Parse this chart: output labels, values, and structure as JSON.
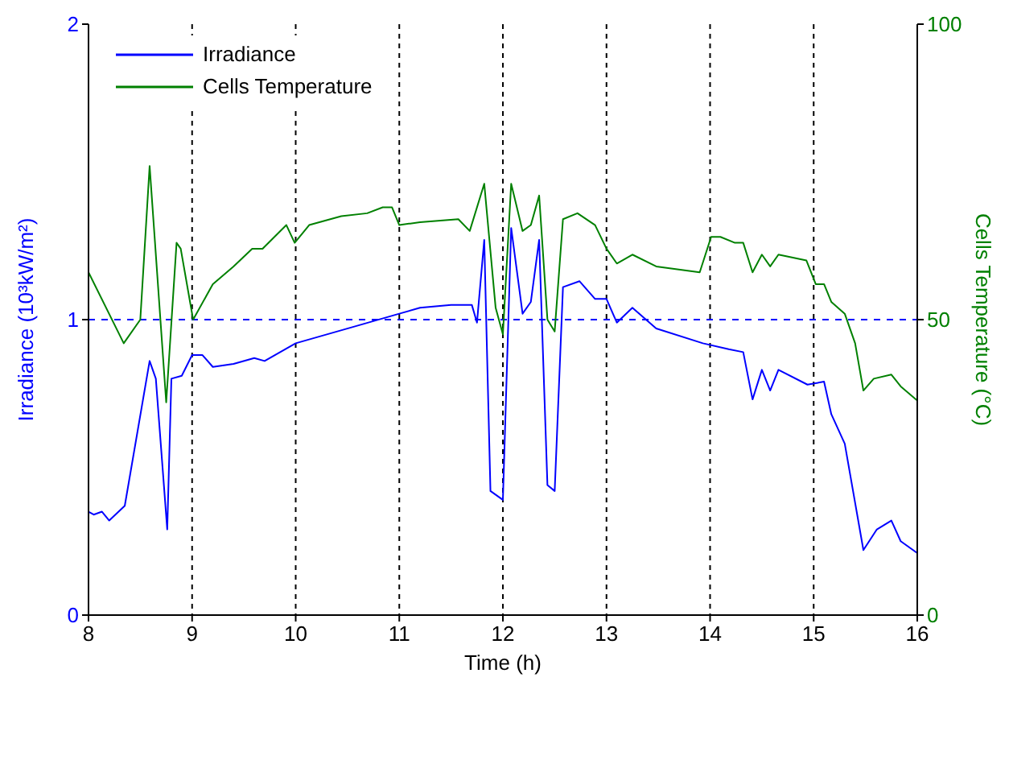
{
  "chart_data": {
    "type": "line",
    "xlabel": "Time (h)",
    "ylabel": "Irradiance (10³kW/m²)",
    "y2label": "Cells Temperature (°C)",
    "xlim": [
      8,
      16
    ],
    "xticks": [
      8,
      9,
      10,
      11,
      12,
      13,
      14,
      15,
      16
    ],
    "ylim": [
      0,
      2
    ],
    "yticks": [
      0,
      1,
      2
    ],
    "y2lim": [
      0,
      100
    ],
    "y2ticks": [
      0,
      50,
      100
    ],
    "grid": "x",
    "legend": "top left",
    "line_style": "solid",
    "ref_lines": [
      {
        "axis": "y",
        "value": 1,
        "color": "#0000ff",
        "line_style": "dashed"
      }
    ],
    "series": [
      {
        "name": "Irradiance",
        "color": "#0000ff",
        "x": [
          8,
          8.05,
          8.13,
          8.2,
          8.35,
          8.59,
          8.65,
          8.76,
          8.8,
          8.9,
          9.0,
          9.1,
          9.2,
          9.4,
          9.6,
          9.7,
          10.0,
          10.3,
          10.6,
          11.0,
          11.2,
          11.5,
          11.7,
          11.75,
          11.82,
          11.88,
          12.0,
          12.08,
          12.19,
          12.27,
          12.35,
          12.43,
          12.5,
          12.58,
          12.74,
          12.89,
          13.0,
          13.1,
          13.25,
          13.48,
          13.93,
          14.18,
          14.32,
          14.41,
          14.5,
          14.58,
          14.66,
          14.94,
          15.1,
          15.17,
          15.3,
          15.48,
          15.61,
          15.75,
          15.84,
          16
        ],
        "values": [
          0.35,
          0.34,
          0.35,
          0.32,
          0.37,
          0.86,
          0.8,
          0.29,
          0.8,
          0.81,
          0.88,
          0.88,
          0.84,
          0.85,
          0.87,
          0.86,
          0.92,
          0.95,
          0.98,
          1.02,
          1.04,
          1.05,
          1.05,
          0.99,
          1.27,
          0.42,
          0.39,
          1.31,
          1.02,
          1.06,
          1.27,
          0.44,
          0.42,
          1.11,
          1.13,
          1.07,
          1.07,
          0.99,
          1.04,
          0.97,
          0.92,
          0.9,
          0.89,
          0.73,
          0.83,
          0.76,
          0.83,
          0.78,
          0.79,
          0.68,
          0.58,
          0.22,
          0.29,
          0.32,
          0.25,
          0.21
        ]
      },
      {
        "name": "Cells Temperature",
        "color": "#008000",
        "axis": "y2",
        "x": [
          8,
          8.34,
          8.5,
          8.59,
          8.75,
          8.85,
          8.89,
          9.01,
          9.2,
          9.4,
          9.58,
          9.68,
          9.91,
          9.99,
          10.13,
          10.44,
          10.69,
          10.84,
          10.93,
          11.0,
          11.2,
          11.57,
          11.68,
          11.82,
          11.93,
          12.0,
          12.08,
          12.19,
          12.27,
          12.35,
          12.43,
          12.5,
          12.58,
          12.72,
          12.89,
          13.0,
          13.1,
          13.25,
          13.48,
          13.9,
          14.01,
          14.1,
          14.24,
          14.32,
          14.41,
          14.5,
          14.58,
          14.66,
          14.93,
          15.02,
          15.1,
          15.17,
          15.3,
          15.4,
          15.48,
          15.58,
          15.75,
          15.84,
          16
        ],
        "values": [
          58,
          46,
          50,
          76,
          36,
          63,
          62,
          50,
          56,
          59,
          62,
          62,
          66,
          63,
          66,
          67.5,
          68,
          69,
          69,
          66,
          66.5,
          67,
          65,
          73,
          52,
          47.5,
          73,
          65,
          66,
          71,
          50,
          48,
          67,
          68,
          66,
          62,
          59.5,
          61,
          59,
          58,
          64,
          64,
          63,
          63,
          58,
          61,
          59,
          61,
          60,
          56,
          56,
          53,
          51,
          46,
          38,
          40,
          40.7,
          38.7,
          36.3
        ]
      }
    ]
  }
}
